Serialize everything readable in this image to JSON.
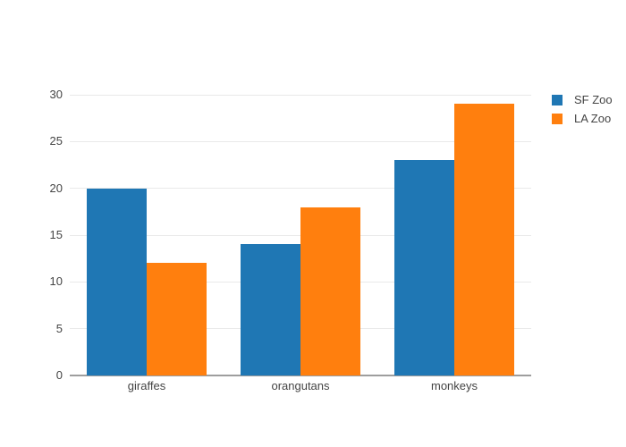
{
  "colors": {
    "sf_zoo_blue": "#1f77b4",
    "la_zoo_orange": "#ff7f0e",
    "gridline": "#e9e9e9",
    "axis_line": "#9e9e9e",
    "tick_label": "#444444",
    "background": "#ffffff"
  },
  "chart_data": {
    "type": "bar",
    "mode": "grouped",
    "categories": [
      "giraffes",
      "orangutans",
      "monkeys"
    ],
    "series": [
      {
        "name": "SF Zoo",
        "color": "#1f77b4",
        "values": [
          20,
          14,
          23
        ]
      },
      {
        "name": "LA Zoo",
        "color": "#ff7f0e",
        "values": [
          12,
          18,
          29
        ]
      }
    ],
    "yticks": [
      0,
      5,
      10,
      15,
      20,
      25,
      30
    ],
    "ylim": [
      0,
      31.05
    ],
    "grid": true,
    "legend_position": "right"
  }
}
